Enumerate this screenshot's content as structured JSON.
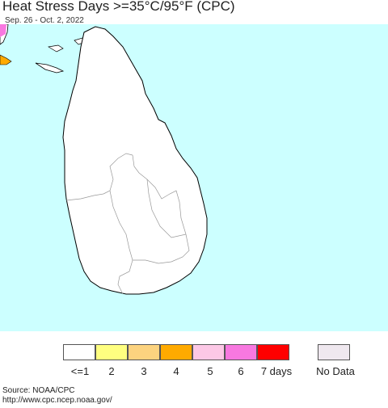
{
  "header": {
    "title": "Heat Stress Days >=35°C/95°F (CPC)",
    "subtitle": "Sep. 26 - Oct. 2, 2022"
  },
  "map": {
    "ocean_color": "#ccffff",
    "land_color": "#ffffff",
    "border_color": "#000000",
    "province_line_color": "#999999"
  },
  "legend": {
    "items": [
      {
        "label": "<=1",
        "color": "#ffffff"
      },
      {
        "label": "2",
        "color": "#ffff80"
      },
      {
        "label": "3",
        "color": "#fcd37f"
      },
      {
        "label": "4",
        "color": "#ffaa00"
      },
      {
        "label": "5",
        "color": "#fcc8e6"
      },
      {
        "label": "6",
        "color": "#f878e0"
      },
      {
        "label": "7 days",
        "color": "#ff0000"
      }
    ],
    "no_data": {
      "label": "No Data",
      "color": "#efe8ef"
    }
  },
  "source": {
    "line1": "Source: NOAA/CPC",
    "line2": "http://www.cpc.ncep.noaa.gov/"
  }
}
